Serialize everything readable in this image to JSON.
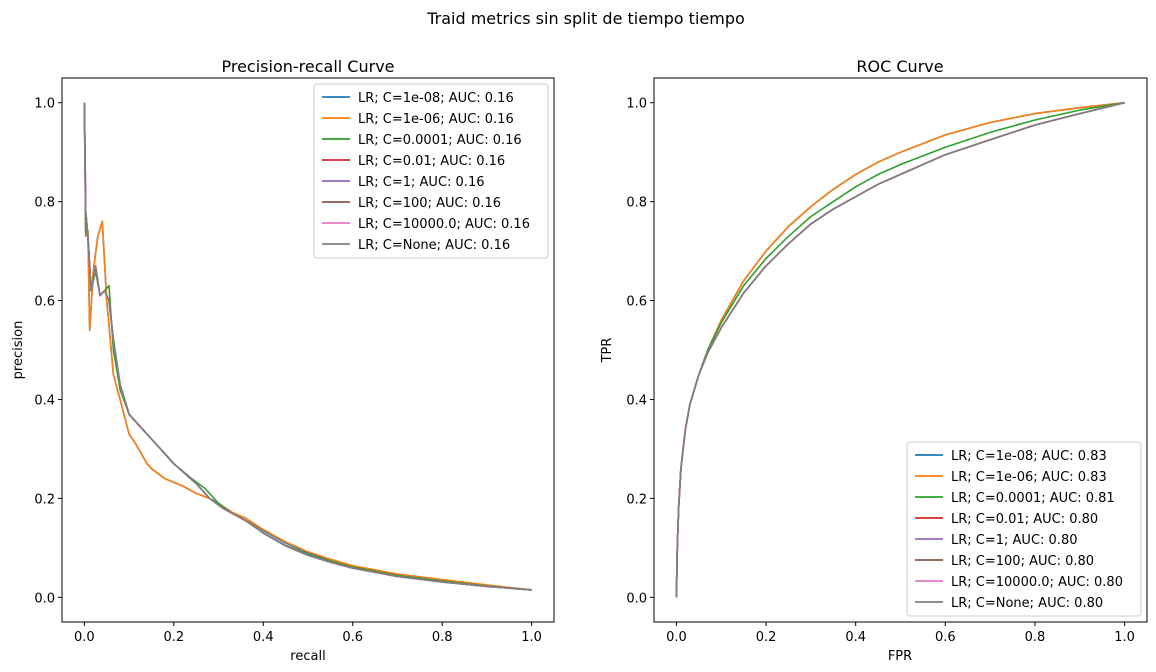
{
  "figure": {
    "suptitle": "Traid metrics sin split de tiempo tiempo"
  },
  "chart_data": [
    {
      "type": "line",
      "title": "Precision-recall Curve",
      "xlabel": "recall",
      "ylabel": "precision",
      "xlim": [
        -0.05,
        1.05
      ],
      "ylim": [
        -0.05,
        1.05
      ],
      "xticks": [
        "0.0",
        "0.2",
        "0.4",
        "0.6",
        "0.8",
        "1.0"
      ],
      "yticks": [
        "0.0",
        "0.2",
        "0.4",
        "0.6",
        "0.8",
        "1.0"
      ],
      "grid": false,
      "legend_position": "top-right",
      "series": [
        {
          "name": "LR; C=1e-08; AUC: 0.16",
          "color": "#1f77b4",
          "x": [
            0,
            0.003,
            0.008,
            0.012,
            0.02,
            0.03,
            0.04,
            0.05,
            0.055,
            0.065,
            0.08,
            0.1,
            0.115,
            0.14,
            0.15,
            0.18,
            0.22,
            0.25,
            0.28,
            0.3,
            0.33,
            0.36,
            0.4,
            0.45,
            0.5,
            0.55,
            0.6,
            0.7,
            0.8,
            0.9,
            1.0
          ],
          "y": [
            1.0,
            0.73,
            0.74,
            0.54,
            0.66,
            0.73,
            0.76,
            0.6,
            0.55,
            0.45,
            0.4,
            0.33,
            0.31,
            0.27,
            0.26,
            0.24,
            0.225,
            0.21,
            0.2,
            0.19,
            0.17,
            0.16,
            0.135,
            0.11,
            0.09,
            0.075,
            0.062,
            0.045,
            0.034,
            0.024,
            0.015
          ]
        },
        {
          "name": "LR; C=1e-06; AUC: 0.16",
          "color": "#ff7f0e",
          "x": [
            0,
            0.003,
            0.008,
            0.012,
            0.02,
            0.03,
            0.04,
            0.05,
            0.055,
            0.065,
            0.08,
            0.1,
            0.115,
            0.14,
            0.15,
            0.18,
            0.22,
            0.25,
            0.28,
            0.3,
            0.33,
            0.36,
            0.4,
            0.45,
            0.5,
            0.55,
            0.6,
            0.7,
            0.8,
            0.9,
            1.0
          ],
          "y": [
            1.0,
            0.73,
            0.74,
            0.54,
            0.66,
            0.73,
            0.76,
            0.6,
            0.55,
            0.45,
            0.4,
            0.33,
            0.31,
            0.27,
            0.26,
            0.24,
            0.225,
            0.21,
            0.2,
            0.19,
            0.172,
            0.16,
            0.137,
            0.112,
            0.092,
            0.077,
            0.064,
            0.047,
            0.036,
            0.025,
            0.015
          ]
        },
        {
          "name": "LR; C=0.0001; AUC: 0.16",
          "color": "#2ca02c",
          "x": [
            0,
            0.003,
            0.008,
            0.015,
            0.025,
            0.035,
            0.045,
            0.055,
            0.065,
            0.08,
            0.1,
            0.12,
            0.15,
            0.2,
            0.24,
            0.27,
            0.3,
            0.33,
            0.36,
            0.4,
            0.45,
            0.5,
            0.55,
            0.6,
            0.7,
            0.8,
            0.9,
            1.0
          ],
          "y": [
            1.0,
            0.74,
            0.73,
            0.62,
            0.66,
            0.61,
            0.62,
            0.63,
            0.5,
            0.42,
            0.37,
            0.35,
            0.32,
            0.27,
            0.24,
            0.22,
            0.19,
            0.17,
            0.155,
            0.13,
            0.105,
            0.087,
            0.073,
            0.061,
            0.044,
            0.033,
            0.023,
            0.015
          ]
        },
        {
          "name": "LR; C=0.01; AUC: 0.16",
          "color": "#d62728",
          "x": [
            0,
            0.003,
            0.008,
            0.015,
            0.025,
            0.035,
            0.045,
            0.055,
            0.065,
            0.08,
            0.1,
            0.12,
            0.15,
            0.2,
            0.25,
            0.28,
            0.31,
            0.34,
            0.37,
            0.4,
            0.45,
            0.5,
            0.55,
            0.6,
            0.7,
            0.8,
            0.9,
            1.0
          ],
          "y": [
            1.0,
            0.78,
            0.73,
            0.62,
            0.67,
            0.61,
            0.62,
            0.6,
            0.52,
            0.43,
            0.37,
            0.35,
            0.32,
            0.27,
            0.23,
            0.2,
            0.18,
            0.165,
            0.15,
            0.13,
            0.104,
            0.085,
            0.071,
            0.059,
            0.042,
            0.031,
            0.022,
            0.015
          ]
        },
        {
          "name": "LR; C=1; AUC: 0.16",
          "color": "#9467bd",
          "x": [
            0,
            0.003,
            0.008,
            0.015,
            0.025,
            0.035,
            0.045,
            0.055,
            0.065,
            0.08,
            0.1,
            0.12,
            0.15,
            0.2,
            0.25,
            0.28,
            0.31,
            0.34,
            0.37,
            0.4,
            0.45,
            0.5,
            0.55,
            0.6,
            0.7,
            0.8,
            0.9,
            1.0
          ],
          "y": [
            1.0,
            0.78,
            0.73,
            0.62,
            0.67,
            0.61,
            0.62,
            0.6,
            0.52,
            0.43,
            0.37,
            0.35,
            0.32,
            0.27,
            0.23,
            0.2,
            0.18,
            0.165,
            0.15,
            0.13,
            0.104,
            0.085,
            0.071,
            0.059,
            0.042,
            0.031,
            0.022,
            0.015
          ]
        },
        {
          "name": "LR; C=100; AUC: 0.16",
          "color": "#8c564b",
          "x": [
            0,
            0.003,
            0.008,
            0.015,
            0.025,
            0.035,
            0.045,
            0.055,
            0.065,
            0.08,
            0.1,
            0.12,
            0.15,
            0.2,
            0.25,
            0.28,
            0.31,
            0.34,
            0.37,
            0.4,
            0.45,
            0.5,
            0.55,
            0.6,
            0.7,
            0.8,
            0.9,
            1.0
          ],
          "y": [
            1.0,
            0.78,
            0.73,
            0.62,
            0.67,
            0.61,
            0.62,
            0.6,
            0.52,
            0.43,
            0.37,
            0.35,
            0.32,
            0.27,
            0.23,
            0.2,
            0.18,
            0.165,
            0.15,
            0.13,
            0.104,
            0.085,
            0.071,
            0.059,
            0.042,
            0.031,
            0.022,
            0.015
          ]
        },
        {
          "name": "LR; C=10000.0; AUC: 0.16",
          "color": "#e377c2",
          "x": [
            0,
            0.003,
            0.008,
            0.015,
            0.025,
            0.035,
            0.045,
            0.055,
            0.065,
            0.08,
            0.1,
            0.12,
            0.15,
            0.2,
            0.25,
            0.28,
            0.31,
            0.34,
            0.37,
            0.4,
            0.45,
            0.5,
            0.55,
            0.6,
            0.7,
            0.8,
            0.9,
            1.0
          ],
          "y": [
            1.0,
            0.78,
            0.73,
            0.62,
            0.67,
            0.61,
            0.62,
            0.6,
            0.52,
            0.43,
            0.37,
            0.35,
            0.32,
            0.27,
            0.23,
            0.2,
            0.18,
            0.165,
            0.15,
            0.13,
            0.104,
            0.085,
            0.071,
            0.059,
            0.042,
            0.031,
            0.022,
            0.015
          ]
        },
        {
          "name": "LR; C=None; AUC: 0.16",
          "color": "#7f7f7f",
          "x": [
            0,
            0.003,
            0.008,
            0.015,
            0.025,
            0.035,
            0.045,
            0.055,
            0.065,
            0.08,
            0.1,
            0.12,
            0.15,
            0.2,
            0.25,
            0.28,
            0.31,
            0.34,
            0.37,
            0.4,
            0.45,
            0.5,
            0.55,
            0.6,
            0.7,
            0.8,
            0.9,
            1.0
          ],
          "y": [
            1.0,
            0.78,
            0.73,
            0.62,
            0.67,
            0.61,
            0.62,
            0.6,
            0.52,
            0.43,
            0.37,
            0.35,
            0.32,
            0.27,
            0.23,
            0.2,
            0.18,
            0.165,
            0.15,
            0.13,
            0.104,
            0.085,
            0.071,
            0.059,
            0.042,
            0.031,
            0.022,
            0.015
          ]
        }
      ]
    },
    {
      "type": "line",
      "title": "ROC Curve",
      "xlabel": "FPR",
      "ylabel": "TPR",
      "xlim": [
        -0.05,
        1.05
      ],
      "ylim": [
        -0.05,
        1.05
      ],
      "xticks": [
        "0.0",
        "0.2",
        "0.4",
        "0.6",
        "0.8",
        "1.0"
      ],
      "yticks": [
        "0.0",
        "0.2",
        "0.4",
        "0.6",
        "0.8",
        "1.0"
      ],
      "grid": false,
      "legend_position": "lower-right",
      "series": [
        {
          "name": "LR; C=1e-08; AUC: 0.83",
          "color": "#1f77b4",
          "x": [
            0,
            0.002,
            0.005,
            0.01,
            0.02,
            0.03,
            0.05,
            0.07,
            0.1,
            0.15,
            0.2,
            0.25,
            0.3,
            0.35,
            0.4,
            0.45,
            0.5,
            0.6,
            0.7,
            0.8,
            0.9,
            1.0
          ],
          "y": [
            0,
            0.1,
            0.18,
            0.26,
            0.34,
            0.39,
            0.45,
            0.5,
            0.56,
            0.64,
            0.7,
            0.75,
            0.79,
            0.825,
            0.855,
            0.88,
            0.9,
            0.935,
            0.96,
            0.978,
            0.99,
            1.0
          ]
        },
        {
          "name": "LR; C=1e-06; AUC: 0.83",
          "color": "#ff7f0e",
          "x": [
            0,
            0.002,
            0.005,
            0.01,
            0.02,
            0.03,
            0.05,
            0.07,
            0.1,
            0.15,
            0.2,
            0.25,
            0.3,
            0.35,
            0.4,
            0.45,
            0.5,
            0.6,
            0.7,
            0.8,
            0.9,
            1.0
          ],
          "y": [
            0,
            0.1,
            0.18,
            0.26,
            0.34,
            0.39,
            0.45,
            0.5,
            0.56,
            0.64,
            0.7,
            0.75,
            0.79,
            0.825,
            0.855,
            0.88,
            0.9,
            0.935,
            0.96,
            0.978,
            0.99,
            1.0
          ]
        },
        {
          "name": "LR; C=0.0001; AUC: 0.81",
          "color": "#2ca02c",
          "x": [
            0,
            0.002,
            0.005,
            0.01,
            0.02,
            0.03,
            0.05,
            0.07,
            0.1,
            0.15,
            0.2,
            0.25,
            0.3,
            0.35,
            0.4,
            0.45,
            0.5,
            0.6,
            0.7,
            0.8,
            0.9,
            1.0
          ],
          "y": [
            0,
            0.1,
            0.18,
            0.26,
            0.34,
            0.39,
            0.45,
            0.5,
            0.555,
            0.63,
            0.685,
            0.73,
            0.77,
            0.8,
            0.83,
            0.855,
            0.875,
            0.91,
            0.94,
            0.965,
            0.985,
            1.0
          ]
        },
        {
          "name": "LR; C=0.01; AUC: 0.80",
          "color": "#d62728",
          "x": [
            0,
            0.002,
            0.005,
            0.01,
            0.02,
            0.03,
            0.05,
            0.07,
            0.1,
            0.15,
            0.2,
            0.25,
            0.3,
            0.35,
            0.4,
            0.45,
            0.5,
            0.6,
            0.7,
            0.8,
            0.9,
            1.0
          ],
          "y": [
            0,
            0.1,
            0.18,
            0.26,
            0.34,
            0.39,
            0.45,
            0.495,
            0.545,
            0.615,
            0.67,
            0.715,
            0.755,
            0.785,
            0.81,
            0.835,
            0.855,
            0.895,
            0.925,
            0.955,
            0.978,
            1.0
          ]
        },
        {
          "name": "LR; C=1; AUC: 0.80",
          "color": "#9467bd",
          "x": [
            0,
            0.002,
            0.005,
            0.01,
            0.02,
            0.03,
            0.05,
            0.07,
            0.1,
            0.15,
            0.2,
            0.25,
            0.3,
            0.35,
            0.4,
            0.45,
            0.5,
            0.6,
            0.7,
            0.8,
            0.9,
            1.0
          ],
          "y": [
            0,
            0.1,
            0.18,
            0.26,
            0.34,
            0.39,
            0.45,
            0.495,
            0.545,
            0.615,
            0.67,
            0.715,
            0.755,
            0.785,
            0.81,
            0.835,
            0.855,
            0.895,
            0.925,
            0.955,
            0.978,
            1.0
          ]
        },
        {
          "name": "LR; C=100; AUC: 0.80",
          "color": "#8c564b",
          "x": [
            0,
            0.002,
            0.005,
            0.01,
            0.02,
            0.03,
            0.05,
            0.07,
            0.1,
            0.15,
            0.2,
            0.25,
            0.3,
            0.35,
            0.4,
            0.45,
            0.5,
            0.6,
            0.7,
            0.8,
            0.9,
            1.0
          ],
          "y": [
            0,
            0.1,
            0.18,
            0.26,
            0.34,
            0.39,
            0.45,
            0.495,
            0.545,
            0.615,
            0.67,
            0.715,
            0.755,
            0.785,
            0.81,
            0.835,
            0.855,
            0.895,
            0.925,
            0.955,
            0.978,
            1.0
          ]
        },
        {
          "name": "LR; C=10000.0; AUC: 0.80",
          "color": "#e377c2",
          "x": [
            0,
            0.002,
            0.005,
            0.01,
            0.02,
            0.03,
            0.05,
            0.07,
            0.1,
            0.15,
            0.2,
            0.25,
            0.3,
            0.35,
            0.4,
            0.45,
            0.5,
            0.6,
            0.7,
            0.8,
            0.9,
            1.0
          ],
          "y": [
            0,
            0.1,
            0.18,
            0.26,
            0.34,
            0.39,
            0.45,
            0.495,
            0.545,
            0.615,
            0.67,
            0.715,
            0.755,
            0.785,
            0.81,
            0.835,
            0.855,
            0.895,
            0.925,
            0.955,
            0.978,
            1.0
          ]
        },
        {
          "name": "LR; C=None; AUC: 0.80",
          "color": "#7f7f7f",
          "x": [
            0,
            0.002,
            0.005,
            0.01,
            0.02,
            0.03,
            0.05,
            0.07,
            0.1,
            0.15,
            0.2,
            0.25,
            0.3,
            0.35,
            0.4,
            0.45,
            0.5,
            0.6,
            0.7,
            0.8,
            0.9,
            1.0
          ],
          "y": [
            0,
            0.1,
            0.18,
            0.26,
            0.34,
            0.39,
            0.45,
            0.495,
            0.545,
            0.615,
            0.67,
            0.715,
            0.755,
            0.785,
            0.81,
            0.835,
            0.855,
            0.895,
            0.925,
            0.955,
            0.978,
            1.0
          ]
        }
      ]
    }
  ]
}
